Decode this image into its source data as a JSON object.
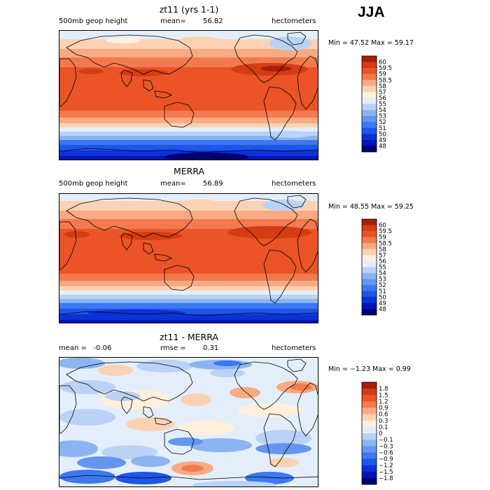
{
  "season": "JJA",
  "panels": [
    {
      "id": "model",
      "title": "zt11 (yrs 1-1)",
      "left_label": "500mb geop height",
      "stat1_label": "mean=",
      "stat1_value": "56.82",
      "units": "hectometers",
      "min_max": {
        "min_label": "Min =",
        "min": "47.52",
        "max_label": "Max =",
        "max": "59.17"
      }
    },
    {
      "id": "obs",
      "title": "MERRA",
      "left_label": "500mb geop height",
      "stat1_label": "mean=",
      "stat1_value": "56.89",
      "units": "hectometers",
      "min_max": {
        "min_label": "Min =",
        "min": "48.55",
        "max_label": "Max =",
        "max": "59.25"
      }
    },
    {
      "id": "diff",
      "title": "zt11 - MERRA",
      "left_label": "mean =   -0.06",
      "stat1_label": "rmse =",
      "stat1_value": "0.31",
      "units": "hectometers",
      "min_max": {
        "min_label": "Min =",
        "min": "−1.23",
        "max_label": "Max =",
        "max": "0.99"
      }
    }
  ],
  "chart_data": [
    {
      "type": "heatmap",
      "title": "zt11 (yrs 1-1)",
      "variable": "500mb geop height",
      "units": "hectometers",
      "mean": 56.82,
      "min": 47.52,
      "max": 59.17,
      "contour_levels": [
        48,
        49,
        50,
        51,
        52,
        53,
        54,
        55,
        56,
        57,
        58,
        58.5,
        59,
        59.5,
        60
      ],
      "colorbar_labels": [
        "60",
        "59.5",
        "59",
        "58.5",
        "58",
        "57",
        "56",
        "55",
        "54",
        "53",
        "52",
        "51",
        "50",
        "49",
        "48"
      ],
      "colors": [
        "#000073",
        "#0014b8",
        "#0a32d8",
        "#1e55ea",
        "#3c78f2",
        "#6496f0",
        "#8cb4f0",
        "#b9d2f5",
        "#e3eefa",
        "#fff0dc",
        "#fcd2b4",
        "#f8aa82",
        "#f27a4e",
        "#ea5426",
        "#d43c14",
        "#a81e0a"
      ],
      "zonal_mean_profile_lat_north_to_south": [
        54.0,
        55.5,
        57.0,
        58.0,
        58.6,
        58.8,
        58.8,
        58.8,
        58.6,
        58.2,
        57.0,
        55.0,
        52.0,
        50.0,
        49.0
      ]
    },
    {
      "type": "heatmap",
      "title": "MERRA",
      "variable": "500mb geop height",
      "units": "hectometers",
      "mean": 56.89,
      "min": 48.55,
      "max": 59.25,
      "contour_levels": [
        48,
        49,
        50,
        51,
        52,
        53,
        54,
        55,
        56,
        57,
        58,
        58.5,
        59,
        59.5,
        60
      ],
      "colorbar_labels": [
        "60",
        "59.5",
        "59",
        "58.5",
        "58",
        "57",
        "56",
        "55",
        "54",
        "53",
        "52",
        "51",
        "50",
        "49",
        "48"
      ],
      "colors": [
        "#000073",
        "#0014b8",
        "#0a32d8",
        "#1e55ea",
        "#3c78f2",
        "#6496f0",
        "#8cb4f0",
        "#b9d2f5",
        "#e3eefa",
        "#fff0dc",
        "#fcd2b4",
        "#f8aa82",
        "#f27a4e",
        "#ea5426",
        "#d43c14",
        "#a81e0a"
      ],
      "zonal_mean_profile_lat_north_to_south": [
        54.5,
        56.0,
        57.2,
        58.2,
        58.7,
        58.9,
        58.9,
        58.9,
        58.7,
        58.3,
        57.2,
        55.3,
        52.5,
        50.5,
        49.5
      ]
    },
    {
      "type": "heatmap",
      "title": "zt11 - MERRA",
      "variable": "500mb geop height difference",
      "units": "hectometers",
      "mean": -0.06,
      "rmse": 0.31,
      "min": -1.23,
      "max": 0.99,
      "contour_levels": [
        -1.8,
        -1.5,
        -1.2,
        -0.9,
        -0.6,
        -0.3,
        -0.1,
        0,
        0.1,
        0.3,
        0.6,
        0.9,
        1.2,
        1.5,
        1.8
      ],
      "colorbar_labels": [
        "1.8",
        "1.5",
        "1.2",
        "0.9",
        "0.6",
        "0.3",
        "0.1",
        "0",
        "−0.1",
        "−0.3",
        "−0.6",
        "−0.9",
        "−1.2",
        "−1.5",
        "−1.8"
      ],
      "colors": [
        "#000073",
        "#0014b8",
        "#0a32d8",
        "#1e55ea",
        "#3c78f2",
        "#6496f0",
        "#8cb4f0",
        "#b9d2f5",
        "#e3eefa",
        "#fff0dc",
        "#fcd2b4",
        "#f8aa82",
        "#f27a4e",
        "#ea5426",
        "#d43c14",
        "#a81e0a"
      ]
    }
  ]
}
